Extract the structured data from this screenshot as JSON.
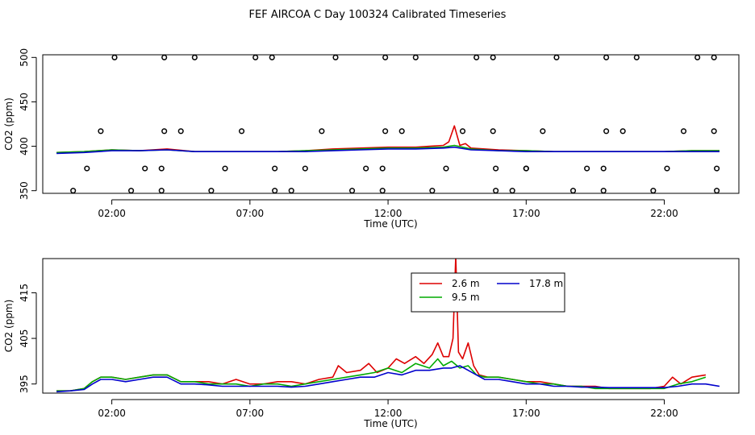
{
  "title": "FEF AIRCOA C  Day 100324  Calibrated Timeseries",
  "chart_data": [
    {
      "type": "scatter",
      "xlabel": "Time (UTC)",
      "ylabel": "CO2 (ppm)",
      "xlim": [
        -0.5,
        24.7
      ],
      "ylim": [
        347,
        503
      ],
      "xticks": [
        2,
        7,
        12,
        17,
        22
      ],
      "xtick_labels": [
        "02:00",
        "07:00",
        "12:00",
        "17:00",
        "22:00"
      ],
      "yticks": [
        350,
        400,
        450,
        500
      ],
      "ytick_labels": [
        "350",
        "400",
        "450",
        "500"
      ],
      "points": [
        {
          "x": 0.6,
          "y": 350
        },
        {
          "x": 1.1,
          "y": 375
        },
        {
          "x": 1.6,
          "y": 417
        },
        {
          "x": 2.1,
          "y": 500
        },
        {
          "x": 2.7,
          "y": 350
        },
        {
          "x": 3.2,
          "y": 375
        },
        {
          "x": 3.8,
          "y": 350
        },
        {
          "x": 3.8,
          "y": 375
        },
        {
          "x": 3.9,
          "y": 417
        },
        {
          "x": 3.9,
          "y": 500
        },
        {
          "x": 4.5,
          "y": 417
        },
        {
          "x": 5.0,
          "y": 500
        },
        {
          "x": 5.6,
          "y": 350
        },
        {
          "x": 6.1,
          "y": 375
        },
        {
          "x": 6.7,
          "y": 417
        },
        {
          "x": 7.2,
          "y": 500
        },
        {
          "x": 7.8,
          "y": 500
        },
        {
          "x": 7.9,
          "y": 375
        },
        {
          "x": 7.9,
          "y": 350
        },
        {
          "x": 8.5,
          "y": 350
        },
        {
          "x": 9.0,
          "y": 375
        },
        {
          "x": 9.6,
          "y": 417
        },
        {
          "x": 10.1,
          "y": 500
        },
        {
          "x": 10.7,
          "y": 350
        },
        {
          "x": 11.2,
          "y": 375
        },
        {
          "x": 11.8,
          "y": 350
        },
        {
          "x": 11.8,
          "y": 375
        },
        {
          "x": 11.9,
          "y": 417
        },
        {
          "x": 11.9,
          "y": 500
        },
        {
          "x": 12.5,
          "y": 417
        },
        {
          "x": 13.0,
          "y": 500
        },
        {
          "x": 13.6,
          "y": 350
        },
        {
          "x": 14.1,
          "y": 375
        },
        {
          "x": 14.7,
          "y": 417
        },
        {
          "x": 15.2,
          "y": 500
        },
        {
          "x": 15.8,
          "y": 500
        },
        {
          "x": 15.8,
          "y": 417
        },
        {
          "x": 15.9,
          "y": 375
        },
        {
          "x": 15.9,
          "y": 350
        },
        {
          "x": 16.5,
          "y": 350
        },
        {
          "x": 17.0,
          "y": 375
        },
        {
          "x": 17.0,
          "y": 375
        },
        {
          "x": 17.6,
          "y": 417
        },
        {
          "x": 18.1,
          "y": 500
        },
        {
          "x": 18.7,
          "y": 350
        },
        {
          "x": 19.2,
          "y": 375
        },
        {
          "x": 19.8,
          "y": 350
        },
        {
          "x": 19.8,
          "y": 375
        },
        {
          "x": 19.9,
          "y": 417
        },
        {
          "x": 19.9,
          "y": 500
        },
        {
          "x": 20.5,
          "y": 417
        },
        {
          "x": 21.0,
          "y": 500
        },
        {
          "x": 21.6,
          "y": 350
        },
        {
          "x": 22.1,
          "y": 375
        },
        {
          "x": 22.7,
          "y": 417
        },
        {
          "x": 23.2,
          "y": 500
        },
        {
          "x": 23.8,
          "y": 500
        },
        {
          "x": 23.8,
          "y": 417
        },
        {
          "x": 23.9,
          "y": 375
        },
        {
          "x": 23.9,
          "y": 350
        }
      ],
      "series": [
        {
          "color": "#dd0000",
          "x": [
            0,
            1,
            2,
            3,
            4,
            5,
            6,
            7,
            8,
            9,
            10,
            11,
            12,
            13,
            13.5,
            14,
            14.2,
            14.4,
            14.6,
            14.8,
            15,
            16,
            17,
            18,
            19,
            20,
            21,
            22,
            23,
            24
          ],
          "y": [
            393,
            394,
            396,
            395,
            397,
            394,
            394,
            394,
            394,
            395,
            397,
            398,
            399,
            399,
            400,
            401,
            405,
            423,
            401,
            403,
            398,
            396,
            395,
            394,
            394,
            394,
            394,
            394,
            395,
            395
          ]
        },
        {
          "color": "#00aa00",
          "x": [
            0,
            1,
            2,
            3,
            4,
            5,
            6,
            7,
            8,
            9,
            10,
            11,
            12,
            13,
            14,
            14.4,
            15,
            16,
            17,
            18,
            19,
            20,
            21,
            22,
            23,
            24
          ],
          "y": [
            393,
            394,
            396,
            395,
            396,
            394,
            394,
            394,
            394,
            395,
            396,
            397,
            398,
            398,
            399,
            401,
            397,
            395,
            395,
            394,
            394,
            394,
            394,
            394,
            395,
            395
          ]
        },
        {
          "color": "#0000cc",
          "x": [
            0,
            1,
            2,
            3,
            4,
            5,
            6,
            7,
            8,
            9,
            10,
            11,
            12,
            13,
            14,
            14.4,
            15,
            16,
            17,
            18,
            19,
            20,
            21,
            22,
            23,
            24
          ],
          "y": [
            392,
            393,
            395,
            395,
            396,
            394,
            394,
            394,
            394,
            394,
            395,
            396,
            397,
            397,
            398,
            399,
            396,
            395,
            394,
            394,
            394,
            394,
            394,
            394,
            394,
            394
          ]
        }
      ]
    },
    {
      "type": "line",
      "xlabel": "Time (UTC)",
      "ylabel": "CO2 (ppm)",
      "xlim": [
        -0.5,
        24.7
      ],
      "ylim": [
        393,
        422.5
      ],
      "xticks": [
        2,
        7,
        12,
        17,
        22
      ],
      "xtick_labels": [
        "02:00",
        "07:00",
        "12:00",
        "17:00",
        "22:00"
      ],
      "yticks": [
        395,
        405,
        415
      ],
      "ytick_labels": [
        "395",
        "405",
        "415"
      ],
      "legend_position": "top-center",
      "series": [
        {
          "name": "2.6 m",
          "color": "#dd0000",
          "x": [
            0,
            0.5,
            1,
            1.3,
            1.6,
            2,
            2.5,
            3,
            3.5,
            4,
            4.5,
            5,
            5.5,
            6,
            6.5,
            7,
            7.5,
            8,
            8.5,
            9,
            9.5,
            10,
            10.2,
            10.5,
            11,
            11.3,
            11.6,
            12,
            12.3,
            12.6,
            13,
            13.3,
            13.6,
            13.8,
            14,
            14.2,
            14.35,
            14.45,
            14.55,
            14.7,
            14.9,
            15.1,
            15.3,
            15.6,
            16,
            16.5,
            17,
            17.5,
            18,
            18.5,
            19,
            19.5,
            20,
            20.5,
            21,
            21.5,
            22,
            22.3,
            22.6,
            23,
            23.5
          ],
          "y": [
            393.5,
            393.5,
            394,
            395.5,
            396.5,
            396.5,
            396,
            396.5,
            397,
            397,
            395.5,
            395.5,
            395.5,
            395,
            396,
            395,
            395,
            395.5,
            395.5,
            395,
            396,
            396.5,
            399,
            397.5,
            398,
            399.5,
            397.5,
            398.5,
            400.5,
            399.5,
            401,
            399.5,
            401.5,
            404,
            401,
            401,
            405,
            423,
            402,
            400.5,
            404,
            399,
            397,
            396.5,
            396.5,
            396,
            395.5,
            395.5,
            395,
            394.5,
            394.5,
            394.5,
            394,
            394,
            394,
            394,
            394.5,
            396.5,
            395,
            396.5,
            397
          ]
        },
        {
          "name": "9.5 m",
          "color": "#00aa00",
          "x": [
            0,
            0.5,
            1,
            1.3,
            1.6,
            2,
            2.5,
            3,
            3.5,
            4,
            4.5,
            5,
            5.5,
            6,
            6.5,
            7,
            7.5,
            8,
            8.5,
            9,
            9.5,
            10,
            10.5,
            11,
            11.5,
            12,
            12.5,
            13,
            13.5,
            13.8,
            14,
            14.3,
            14.6,
            14.9,
            15.2,
            15.5,
            16,
            16.5,
            17,
            17.5,
            18,
            18.5,
            19,
            19.5,
            20,
            20.5,
            21,
            21.5,
            22,
            22.5,
            23,
            23.5
          ],
          "y": [
            393.5,
            393.5,
            394,
            395.5,
            396.5,
            396.5,
            396,
            396.5,
            397,
            397,
            395.5,
            395.5,
            395,
            395,
            395,
            394.5,
            395,
            395,
            394.5,
            395,
            395.5,
            396,
            396.5,
            397,
            397.5,
            398.5,
            397.5,
            399.5,
            398.5,
            400.5,
            399,
            400,
            398.5,
            399,
            397,
            396.5,
            396.5,
            396,
            395.5,
            395,
            395,
            394.5,
            394.5,
            394,
            394,
            394,
            394,
            394,
            394,
            395,
            395.5,
            396.5
          ]
        },
        {
          "name": "17.8 m",
          "color": "#0000cc",
          "x": [
            0,
            0.5,
            1,
            1.3,
            1.6,
            2,
            2.5,
            3,
            3.5,
            4,
            4.5,
            5,
            5.5,
            6,
            6.5,
            7,
            7.5,
            8,
            8.5,
            9,
            9.5,
            10,
            10.5,
            11,
            11.5,
            12,
            12.5,
            13,
            13.5,
            14,
            14.3,
            14.6,
            14.9,
            15.2,
            15.5,
            16,
            16.5,
            17,
            17.5,
            18,
            18.5,
            19,
            19.5,
            20,
            20.5,
            21,
            21.5,
            22,
            22.5,
            23,
            23.5,
            24
          ],
          "y": [
            393.3,
            393.5,
            393.8,
            395,
            396,
            396,
            395.5,
            396,
            396.5,
            396.5,
            395,
            395,
            394.8,
            394.5,
            394.5,
            394.5,
            394.5,
            394.5,
            394.3,
            394.5,
            395,
            395.5,
            396,
            396.5,
            396.5,
            397.5,
            397,
            398,
            398,
            398.5,
            398.5,
            399,
            398,
            397,
            396,
            396,
            395.5,
            395,
            395,
            394.5,
            394.5,
            394.3,
            394.3,
            394.2,
            394.2,
            394.2,
            394.2,
            394.2,
            394.5,
            395,
            395,
            394.5
          ]
        }
      ]
    }
  ]
}
